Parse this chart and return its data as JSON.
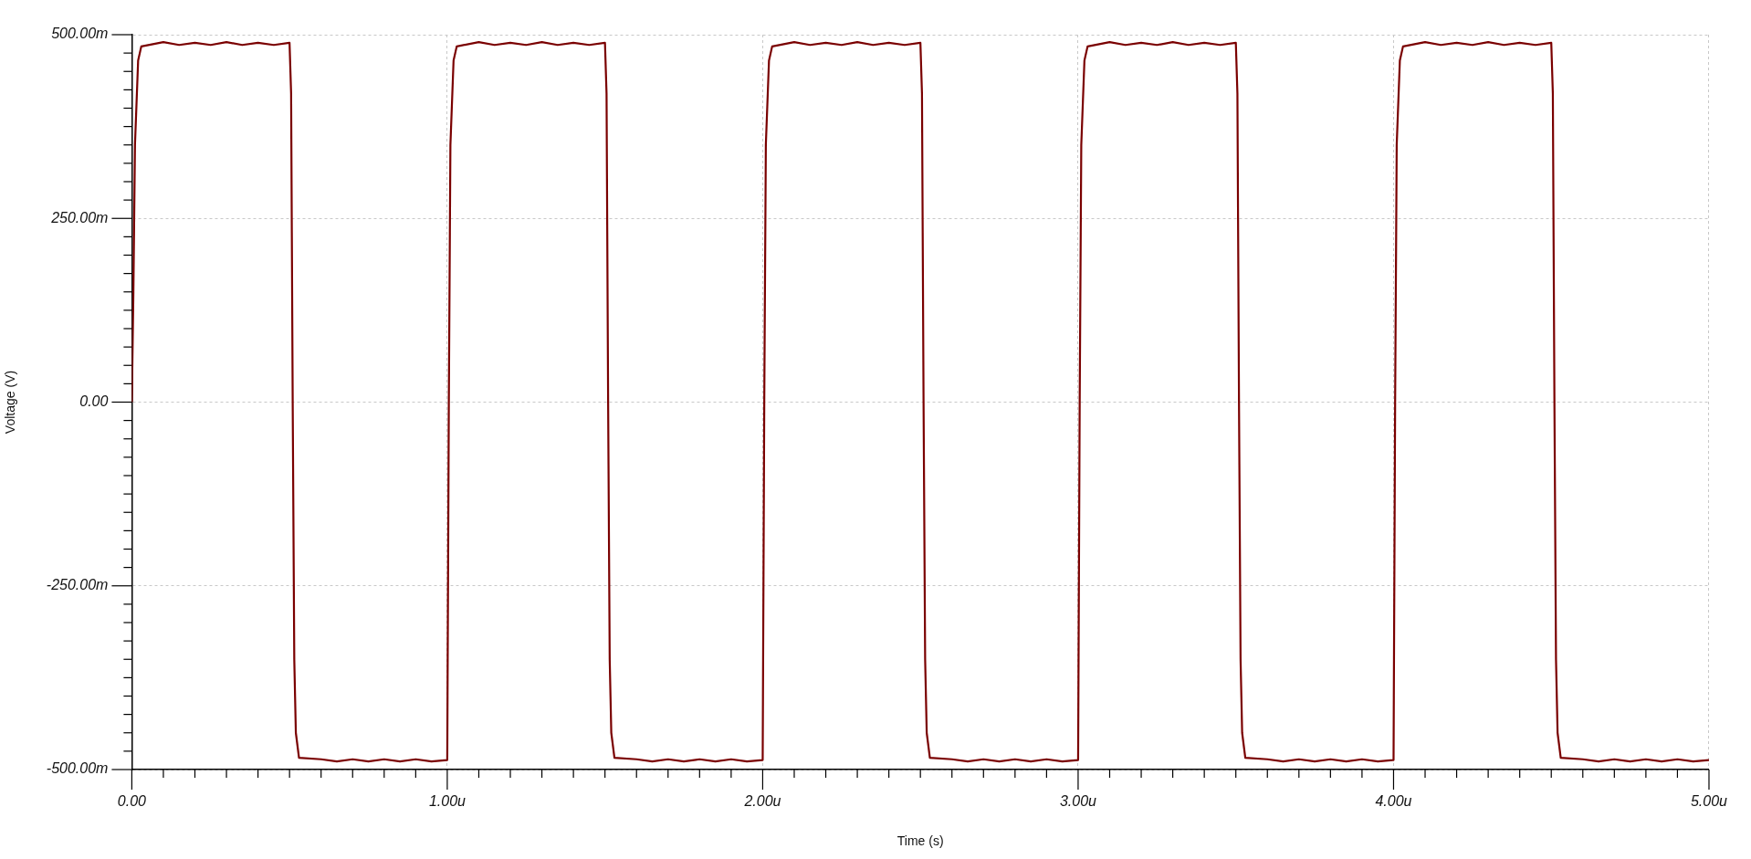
{
  "chart_data": {
    "type": "line",
    "xlabel": "Time (s)",
    "ylabel": "Voltage (V)",
    "grid": true,
    "legend": false,
    "marker": "none",
    "line_style": "solid",
    "xlim": [
      0,
      5
    ],
    "ylim": [
      -500,
      500
    ],
    "xticks": [
      {
        "value": 0,
        "label": "0.00"
      },
      {
        "value": 0.1,
        "label": null
      },
      {
        "value": 0.2,
        "label": null
      },
      {
        "value": 0.3,
        "label": null
      },
      {
        "value": 0.4,
        "label": null
      },
      {
        "value": 0.5,
        "label": null
      },
      {
        "value": 0.6,
        "label": null
      },
      {
        "value": 0.7,
        "label": null
      },
      {
        "value": 0.8,
        "label": null
      },
      {
        "value": 0.9,
        "label": null
      },
      {
        "value": 1,
        "label": "1.00u"
      },
      {
        "value": 1.1,
        "label": null
      },
      {
        "value": 1.2,
        "label": null
      },
      {
        "value": 1.3,
        "label": null
      },
      {
        "value": 1.4,
        "label": null
      },
      {
        "value": 1.5,
        "label": null
      },
      {
        "value": 1.6,
        "label": null
      },
      {
        "value": 1.7,
        "label": null
      },
      {
        "value": 1.8,
        "label": null
      },
      {
        "value": 1.9,
        "label": null
      },
      {
        "value": 2,
        "label": "2.00u"
      },
      {
        "value": 2.1,
        "label": null
      },
      {
        "value": 2.2,
        "label": null
      },
      {
        "value": 2.3,
        "label": null
      },
      {
        "value": 2.4,
        "label": null
      },
      {
        "value": 2.5,
        "label": null
      },
      {
        "value": 2.6,
        "label": null
      },
      {
        "value": 2.7,
        "label": null
      },
      {
        "value": 2.8,
        "label": null
      },
      {
        "value": 2.9,
        "label": null
      },
      {
        "value": 3,
        "label": "3.00u"
      },
      {
        "value": 3.1,
        "label": null
      },
      {
        "value": 3.2,
        "label": null
      },
      {
        "value": 3.3,
        "label": null
      },
      {
        "value": 3.4,
        "label": null
      },
      {
        "value": 3.5,
        "label": null
      },
      {
        "value": 3.6,
        "label": null
      },
      {
        "value": 3.7,
        "label": null
      },
      {
        "value": 3.8,
        "label": null
      },
      {
        "value": 3.9,
        "label": null
      },
      {
        "value": 4,
        "label": "4.00u"
      },
      {
        "value": 4.1,
        "label": null
      },
      {
        "value": 4.2,
        "label": null
      },
      {
        "value": 4.3,
        "label": null
      },
      {
        "value": 4.4,
        "label": null
      },
      {
        "value": 4.5,
        "label": null
      },
      {
        "value": 4.6,
        "label": null
      },
      {
        "value": 4.7,
        "label": null
      },
      {
        "value": 4.8,
        "label": null
      },
      {
        "value": 4.9,
        "label": null
      },
      {
        "value": 5,
        "label": "5.00u"
      }
    ],
    "yticks": [
      {
        "value": -500,
        "label": "-500.00m"
      },
      {
        "value": -475,
        "label": null
      },
      {
        "value": -450,
        "label": null
      },
      {
        "value": -425,
        "label": null
      },
      {
        "value": -400,
        "label": null
      },
      {
        "value": -375,
        "label": null
      },
      {
        "value": -350,
        "label": null
      },
      {
        "value": -325,
        "label": null
      },
      {
        "value": -300,
        "label": null
      },
      {
        "value": -275,
        "label": null
      },
      {
        "value": -250,
        "label": "-250.00m"
      },
      {
        "value": -225,
        "label": null
      },
      {
        "value": -200,
        "label": null
      },
      {
        "value": -175,
        "label": null
      },
      {
        "value": -150,
        "label": null
      },
      {
        "value": -125,
        "label": null
      },
      {
        "value": -100,
        "label": null
      },
      {
        "value": -75,
        "label": null
      },
      {
        "value": -50,
        "label": null
      },
      {
        "value": -25,
        "label": null
      },
      {
        "value": 0,
        "label": "0.00"
      },
      {
        "value": 25,
        "label": null
      },
      {
        "value": 50,
        "label": null
      },
      {
        "value": 75,
        "label": null
      },
      {
        "value": 100,
        "label": null
      },
      {
        "value": 125,
        "label": null
      },
      {
        "value": 150,
        "label": null
      },
      {
        "value": 175,
        "label": null
      },
      {
        "value": 200,
        "label": null
      },
      {
        "value": 225,
        "label": null
      },
      {
        "value": 250,
        "label": "250.00m"
      },
      {
        "value": 275,
        "label": null
      },
      {
        "value": 300,
        "label": null
      },
      {
        "value": 325,
        "label": null
      },
      {
        "value": 350,
        "label": null
      },
      {
        "value": 375,
        "label": null
      },
      {
        "value": 400,
        "label": null
      },
      {
        "value": 425,
        "label": null
      },
      {
        "value": 450,
        "label": null
      },
      {
        "value": 475,
        "label": null
      },
      {
        "value": 500,
        "label": "500.00m"
      }
    ],
    "series": [
      {
        "color": "#7a0000",
        "x": [
          0,
          0.005,
          0.01,
          0.02,
          0.03,
          0.1,
          0.15,
          0.2,
          0.25,
          0.3,
          0.35,
          0.4,
          0.45,
          0.5,
          0.505,
          0.51,
          0.515,
          0.52,
          0.53,
          0.6,
          0.65,
          0.7,
          0.75,
          0.8,
          0.85,
          0.9,
          0.95,
          1,
          1.005,
          1.01,
          1.02,
          1.03,
          1.1,
          1.15,
          1.2,
          1.25,
          1.3,
          1.35,
          1.4,
          1.45,
          1.5,
          1.505,
          1.51,
          1.515,
          1.52,
          1.53,
          1.6,
          1.65,
          1.7,
          1.75,
          1.8,
          1.85,
          1.9,
          1.95,
          2,
          2.005,
          2.01,
          2.02,
          2.03,
          2.1,
          2.15,
          2.2,
          2.25,
          2.3,
          2.35,
          2.4,
          2.45,
          2.5,
          2.505,
          2.51,
          2.515,
          2.52,
          2.53,
          2.6,
          2.65,
          2.7,
          2.75,
          2.8,
          2.85,
          2.9,
          2.95,
          3,
          3.005,
          3.01,
          3.02,
          3.03,
          3.1,
          3.15,
          3.2,
          3.25,
          3.3,
          3.35,
          3.4,
          3.45,
          3.5,
          3.505,
          3.51,
          3.515,
          3.52,
          3.53,
          3.6,
          3.65,
          3.7,
          3.75,
          3.8,
          3.85,
          3.9,
          3.95,
          4,
          4.005,
          4.01,
          4.02,
          4.03,
          4.1,
          4.15,
          4.2,
          4.25,
          4.3,
          4.35,
          4.4,
          4.45,
          4.5,
          4.505,
          4.51,
          4.515,
          4.52,
          4.53,
          4.6,
          4.65,
          4.7,
          4.75,
          4.8,
          4.85,
          4.9,
          4.95,
          5
        ],
        "values": [
          0,
          150,
          350,
          465,
          484,
          490,
          486,
          489,
          486,
          490,
          486,
          489,
          486,
          489,
          420,
          0,
          -350,
          -450,
          -484,
          -486,
          -489,
          -486,
          -489,
          -486,
          -489,
          -486,
          -489,
          -487,
          0,
          350,
          465,
          484,
          490,
          486,
          489,
          486,
          490,
          486,
          489,
          486,
          489,
          420,
          0,
          -350,
          -450,
          -484,
          -486,
          -489,
          -486,
          -489,
          -486,
          -489,
          -486,
          -489,
          -487,
          0,
          350,
          465,
          484,
          490,
          486,
          489,
          486,
          490,
          486,
          489,
          486,
          489,
          420,
          0,
          -350,
          -450,
          -484,
          -486,
          -489,
          -486,
          -489,
          -486,
          -489,
          -486,
          -489,
          -487,
          0,
          350,
          465,
          484,
          490,
          486,
          489,
          486,
          490,
          486,
          489,
          486,
          489,
          420,
          0,
          -350,
          -450,
          -484,
          -486,
          -489,
          -486,
          -489,
          -486,
          -489,
          -486,
          -489,
          -487,
          0,
          350,
          465,
          484,
          490,
          486,
          489,
          486,
          490,
          486,
          489,
          486,
          489,
          420,
          0,
          -350,
          -450,
          -484,
          -486,
          -489,
          -486,
          -489,
          -486,
          -489,
          -486,
          -489,
          -487
        ]
      }
    ]
  }
}
